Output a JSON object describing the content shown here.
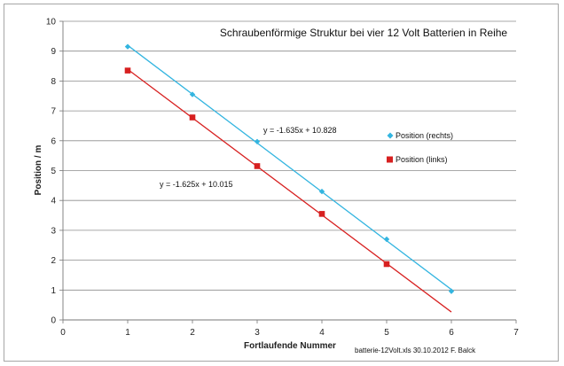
{
  "chart_data": {
    "type": "scatter",
    "title": "Schraubenförmige  Struktur bei vier 12 Volt Batterien in Reihe",
    "xlabel": "Fortlaufende Nummer",
    "ylabel": "Position / m",
    "xlim": [
      0,
      7
    ],
    "ylim": [
      0,
      10
    ],
    "xticks": [
      "0",
      "1",
      "2",
      "3",
      "4",
      "5",
      "6",
      "7"
    ],
    "yticks": [
      "0",
      "1",
      "2",
      "3",
      "4",
      "5",
      "6",
      "7",
      "8",
      "9",
      "10"
    ],
    "grid": "horizontal",
    "legend_position": "right",
    "series": [
      {
        "name": "Position (rechts)",
        "color": "#33b5e0",
        "marker": "diamond",
        "x": [
          1,
          2,
          3,
          4,
          5,
          6
        ],
        "y": [
          9.15,
          7.55,
          5.97,
          4.3,
          2.7,
          0.96
        ],
        "trendline": {
          "slope": -1.635,
          "intercept": 10.828,
          "x_range": [
            1,
            6
          ],
          "equation": "y = -1.635x + 10.828"
        }
      },
      {
        "name": "Position (links)",
        "color": "#d72020",
        "marker": "square",
        "x": [
          1,
          2,
          3,
          4,
          5
        ],
        "y": [
          8.35,
          6.78,
          5.15,
          3.55,
          1.87
        ],
        "trendline": {
          "slope": -1.625,
          "intercept": 10.015,
          "x_range": [
            1,
            6
          ],
          "equation": "y = -1.625x + 10.015"
        }
      }
    ],
    "footer": "batterie-12Volt.xls  30.10.2012  F. Balck"
  }
}
